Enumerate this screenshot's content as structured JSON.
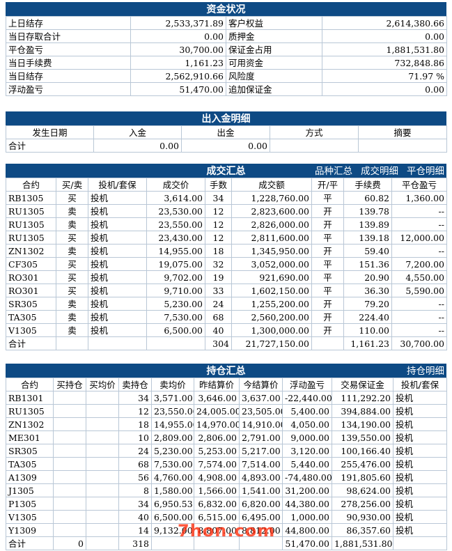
{
  "funds": {
    "title": "资金状况",
    "rows": [
      {
        "l1": "上日结存",
        "v1": "2,533,371.89",
        "l2": "客户权益",
        "v2": "2,614,380.66"
      },
      {
        "l1": "当日存取合计",
        "v1": "0.00",
        "l2": "质押金",
        "v2": "0.00"
      },
      {
        "l1": "平仓盈亏",
        "v1": "30,700.00",
        "l2": "保证金占用",
        "v2": "1,881,531.80"
      },
      {
        "l1": "当日手续费",
        "v1": "1,161.23",
        "l2": "可用资金",
        "v2": "732,848.86"
      },
      {
        "l1": "当日结存",
        "v1": "2,562,910.66",
        "l2": "风险度",
        "v2": "71.97 %"
      },
      {
        "l1": "浮动盈亏",
        "v1": "51,470.00",
        "l2": "追加保证金",
        "v2": "0.00"
      }
    ]
  },
  "cashflow": {
    "title": "出入金明细",
    "headers": [
      "发生日期",
      "入金",
      "出金",
      "方式",
      "摘要"
    ],
    "total": {
      "label": "合计",
      "in": "0.00",
      "out": "0.00",
      "method": "",
      "note": ""
    }
  },
  "trades": {
    "title": "成交汇总",
    "links": [
      "品种汇总",
      "成交明细",
      "平仓明细"
    ],
    "headers": [
      "合约",
      "买/卖",
      "投机/套保",
      "成交价",
      "手数",
      "成交额",
      "开/平",
      "手续费",
      "平仓盈亏"
    ],
    "rows": [
      [
        "RB1305",
        "买",
        "投机",
        "3,614.00",
        "34",
        "1,228,760.00",
        "平",
        "60.82",
        "1,360.00"
      ],
      [
        "RU1305",
        "卖",
        "投机",
        "23,530.00",
        "12",
        "2,823,600.00",
        "开",
        "139.78",
        "--"
      ],
      [
        "RU1305",
        "卖",
        "投机",
        "23,550.00",
        "12",
        "2,826,000.00",
        "开",
        "139.89",
        "--"
      ],
      [
        "RU1305",
        "买",
        "投机",
        "23,430.00",
        "12",
        "2,811,600.00",
        "平",
        "139.18",
        "12,000.00"
      ],
      [
        "ZN1302",
        "卖",
        "投机",
        "14,955.00",
        "18",
        "1,345,950.00",
        "开",
        "59.40",
        "--"
      ],
      [
        "CF305",
        "买",
        "投机",
        "19,075.00",
        "32",
        "3,052,000.00",
        "平",
        "151.36",
        "7,200.00"
      ],
      [
        "RO301",
        "买",
        "投机",
        "9,702.00",
        "19",
        "921,690.00",
        "平",
        "20.90",
        "4,550.00"
      ],
      [
        "RO301",
        "买",
        "投机",
        "9,710.00",
        "33",
        "1,602,150.00",
        "平",
        "36.30",
        "5,590.00"
      ],
      [
        "SR305",
        "卖",
        "投机",
        "5,230.00",
        "24",
        "1,255,200.00",
        "开",
        "79.20",
        "--"
      ],
      [
        "TA305",
        "卖",
        "投机",
        "7,530.00",
        "68",
        "2,560,200.00",
        "开",
        "224.40",
        "--"
      ],
      [
        "V1305",
        "卖",
        "投机",
        "6,500.00",
        "40",
        "1,300,000.00",
        "开",
        "110.00",
        "--"
      ]
    ],
    "total": {
      "label": "合计",
      "lots": "304",
      "amount": "21,727,150.00",
      "fee": "1,161.23",
      "pnl": "30,700.00"
    }
  },
  "positions": {
    "title": "持仓汇总",
    "links": [
      "持仓明细"
    ],
    "headers": [
      "合约",
      "买持仓",
      "买均价",
      "卖持仓",
      "卖均价",
      "昨结算价",
      "今结算价",
      "浮动盈亏",
      "交易保证金",
      "投机/套保"
    ],
    "rows": [
      [
        "RB1301",
        "",
        "",
        "34",
        "3,571.00",
        "3,646.00",
        "3,637.00",
        "-22,440.00",
        "111,292.20",
        "投机"
      ],
      [
        "RU1305",
        "",
        "",
        "12",
        "23,550.00",
        "24,005.00",
        "23,505.00",
        "5,400.00",
        "394,884.00",
        "投机"
      ],
      [
        "ZN1302",
        "",
        "",
        "18",
        "14,955.00",
        "14,970.00",
        "14,910.00",
        "4,050.00",
        "134,190.00",
        "投机"
      ],
      [
        "ME301",
        "",
        "",
        "10",
        "2,809.00",
        "2,806.00",
        "2,791.00",
        "9,000.00",
        "139,550.00",
        "投机"
      ],
      [
        "SR305",
        "",
        "",
        "24",
        "5,230.00",
        "5,253.00",
        "5,217.00",
        "3,120.00",
        "100,166.40",
        "投机"
      ],
      [
        "TA305",
        "",
        "",
        "68",
        "7,530.00",
        "7,574.00",
        "7,514.00",
        "5,440.00",
        "255,476.00",
        "投机"
      ],
      [
        "A1309",
        "",
        "",
        "56",
        "4,760.00",
        "4,908.00",
        "4,893.00",
        "-74,480.00",
        "191,805.60",
        "投机"
      ],
      [
        "J1305",
        "",
        "",
        "8",
        "1,580.00",
        "1,566.00",
        "1,541.00",
        "31,200.00",
        "98,624.00",
        "投机"
      ],
      [
        "P1305",
        "",
        "",
        "34",
        "6,950.53",
        "6,832.00",
        "6,820.00",
        "44,380.00",
        "278,256.00",
        "投机"
      ],
      [
        "V1305",
        "",
        "",
        "40",
        "6,500.00",
        "6,515.00",
        "6,495.00",
        "1,000.00",
        "90,930.00",
        "投机"
      ],
      [
        "Y1309",
        "",
        "",
        "14",
        "9,132.00",
        "8,807.00",
        "8,812.00",
        "44,800.00",
        "86,357.60",
        "投机"
      ]
    ],
    "total": {
      "label": "合计",
      "buy": "0",
      "sell": "318",
      "pnl": "51,470.00",
      "margin": "1,881,531.80"
    }
  },
  "watermark": "7hon.com"
}
